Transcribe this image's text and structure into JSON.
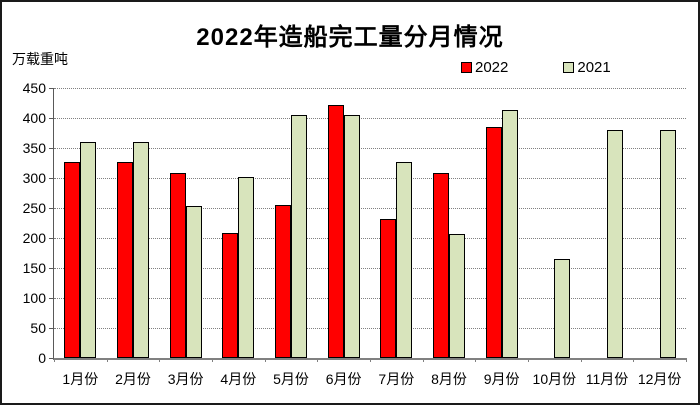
{
  "chart_data": {
    "type": "bar",
    "title": "2022年造船完工量分月情况",
    "unit_label": "万载重吨",
    "xlabel": "",
    "ylabel": "万载重吨",
    "categories": [
      "1月份",
      "2月份",
      "3月份",
      "4月份",
      "5月份",
      "6月份",
      "7月份",
      "8月份",
      "9月份",
      "10月份",
      "11月份",
      "12月份"
    ],
    "series": [
      {
        "name": "2022",
        "color": "#FF0000",
        "values": [
          327,
          327,
          309,
          209,
          255,
          422,
          232,
          309,
          385,
          null,
          null,
          null
        ]
      },
      {
        "name": "2021",
        "color": "#D8E4BC",
        "values": [
          360,
          360,
          253,
          302,
          405,
          405,
          326,
          206,
          414,
          165,
          380,
          380
        ]
      }
    ],
    "ylim": [
      0,
      450
    ],
    "ytick_step": 50,
    "grid": "horizontal-dotted",
    "gridline_color": "#808080",
    "legend_position": "top-right",
    "bar_border_color": "#000000"
  }
}
